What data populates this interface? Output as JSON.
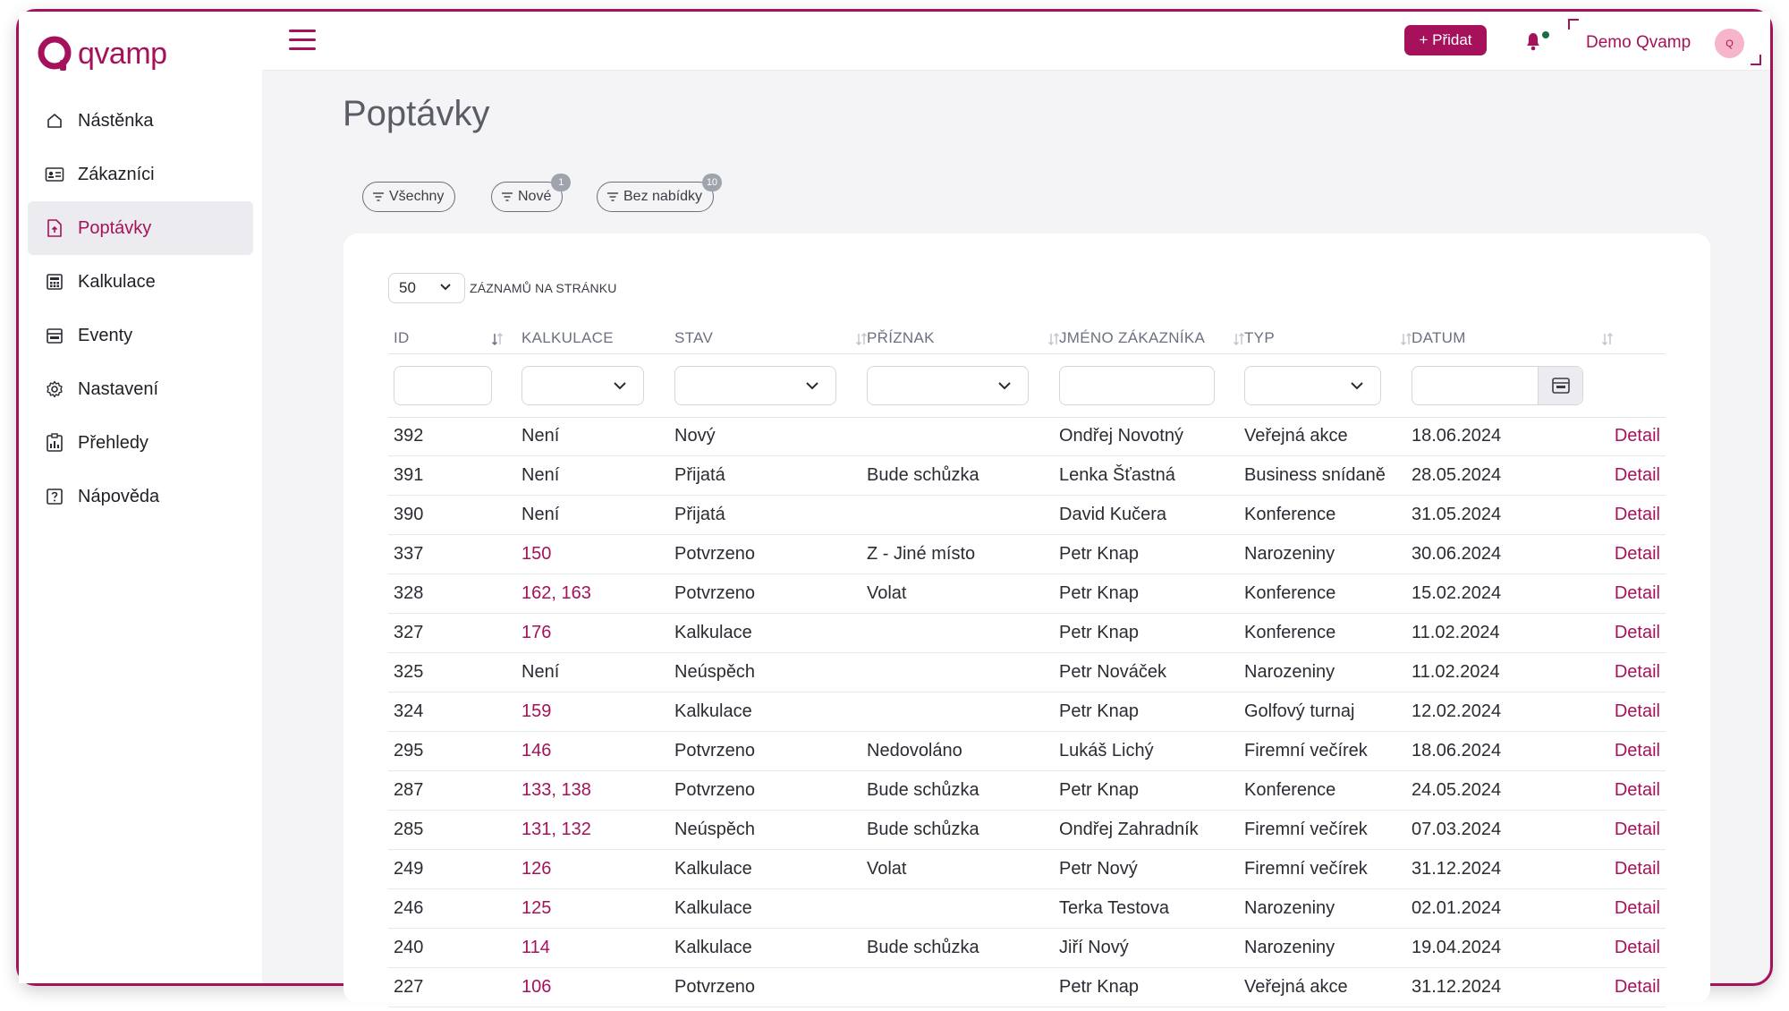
{
  "app": {
    "logo_text": "qvamp"
  },
  "sidebar": {
    "items": [
      {
        "label": "Nástěnka",
        "icon": "home-icon"
      },
      {
        "label": "Zákazníci",
        "icon": "id-card-icon"
      },
      {
        "label": "Poptávky",
        "icon": "document-upload-icon",
        "active": true
      },
      {
        "label": "Kalkulace",
        "icon": "calculator-icon"
      },
      {
        "label": "Eventy",
        "icon": "calendar-event-icon"
      },
      {
        "label": "Nastavení",
        "icon": "gear-icon"
      },
      {
        "label": "Přehledy",
        "icon": "report-chart-icon"
      },
      {
        "label": "Nápověda",
        "icon": "help-icon"
      }
    ]
  },
  "topbar": {
    "add_label": "+ Přidat",
    "user_name": "Demo Qvamp",
    "avatar_initial": "Q"
  },
  "page": {
    "title": "Poptávky",
    "filters": [
      {
        "label": "Všechny",
        "badge": ""
      },
      {
        "label": "Nové",
        "badge": "1"
      },
      {
        "label": "Bez nabídky",
        "badge": "10"
      }
    ]
  },
  "table": {
    "per_page_value": "50",
    "per_page_label": "ZÁZNAMŮ NA STRÁNKU",
    "columns": [
      "ID",
      "KALKULACE",
      "STAV",
      "PŘÍZNAK",
      "JMÉNO ZÁKAZNÍKA",
      "TYP",
      "DATUM"
    ],
    "detail_label": "Detail",
    "rows": [
      {
        "id": "392",
        "kalkulace": "Není",
        "kalk_link": false,
        "stav": "Nový",
        "priznak": "",
        "jmeno": "Ondřej Novotný",
        "typ": "Veřejná akce",
        "datum": "18.06.2024"
      },
      {
        "id": "391",
        "kalkulace": "Není",
        "kalk_link": false,
        "stav": "Přijatá",
        "priznak": "Bude schůzka",
        "jmeno": "Lenka Šťastná",
        "typ": "Business snídaně",
        "datum": "28.05.2024"
      },
      {
        "id": "390",
        "kalkulace": "Není",
        "kalk_link": false,
        "stav": "Přijatá",
        "priznak": "",
        "jmeno": "David Kučera",
        "typ": "Konference",
        "datum": "31.05.2024"
      },
      {
        "id": "337",
        "kalkulace": "150",
        "kalk_link": true,
        "stav": "Potvrzeno",
        "priznak": "Z - Jiné místo",
        "jmeno": "Petr Knap",
        "typ": "Narozeniny",
        "datum": "30.06.2024"
      },
      {
        "id": "328",
        "kalkulace": "162, 163",
        "kalk_link": true,
        "stav": "Potvrzeno",
        "priznak": "Volat",
        "jmeno": "Petr Knap",
        "typ": "Konference",
        "datum": "15.02.2024"
      },
      {
        "id": "327",
        "kalkulace": "176",
        "kalk_link": true,
        "stav": "Kalkulace",
        "priznak": "",
        "jmeno": "Petr Knap",
        "typ": "Konference",
        "datum": "11.02.2024"
      },
      {
        "id": "325",
        "kalkulace": "Není",
        "kalk_link": false,
        "stav": "Neúspěch",
        "priznak": "",
        "jmeno": "Petr Nováček",
        "typ": "Narozeniny",
        "datum": "11.02.2024"
      },
      {
        "id": "324",
        "kalkulace": "159",
        "kalk_link": true,
        "stav": "Kalkulace",
        "priznak": "",
        "jmeno": "Petr Knap",
        "typ": "Golfový turnaj",
        "datum": "12.02.2024"
      },
      {
        "id": "295",
        "kalkulace": "146",
        "kalk_link": true,
        "stav": "Potvrzeno",
        "priznak": "Nedovoláno",
        "jmeno": "Lukáš Lichý",
        "typ": "Firemní večírek",
        "datum": "18.06.2024"
      },
      {
        "id": "287",
        "kalkulace": "133, 138",
        "kalk_link": true,
        "stav": "Potvrzeno",
        "priznak": "Bude schůzka",
        "jmeno": "Petr Knap",
        "typ": "Konference",
        "datum": "24.05.2024"
      },
      {
        "id": "285",
        "kalkulace": "131, 132",
        "kalk_link": true,
        "stav": "Neúspěch",
        "priznak": "Bude schůzka",
        "jmeno": "Ondřej Zahradník",
        "typ": "Firemní večírek",
        "datum": "07.03.2024"
      },
      {
        "id": "249",
        "kalkulace": "126",
        "kalk_link": true,
        "stav": "Kalkulace",
        "priznak": "Volat",
        "jmeno": "Petr Nový",
        "typ": "Firemní večírek",
        "datum": "31.12.2024"
      },
      {
        "id": "246",
        "kalkulace": "125",
        "kalk_link": true,
        "stav": "Kalkulace",
        "priznak": "",
        "jmeno": "Terka Testova",
        "typ": "Narozeniny",
        "datum": "02.01.2024"
      },
      {
        "id": "240",
        "kalkulace": "114",
        "kalk_link": true,
        "stav": "Kalkulace",
        "priznak": "Bude schůzka",
        "jmeno": "Jiří Nový",
        "typ": "Narozeniny",
        "datum": "19.04.2024"
      },
      {
        "id": "227",
        "kalkulace": "106",
        "kalk_link": true,
        "stav": "Potvrzeno",
        "priznak": "",
        "jmeno": "Petr Knap",
        "typ": "Veřejná akce",
        "datum": "31.12.2024"
      }
    ]
  },
  "colors": {
    "accent": "#a5125b",
    "avatar_bg": "#f6b5c9",
    "page_bg": "#f4f4f6",
    "badge": "#9fa3ae"
  }
}
